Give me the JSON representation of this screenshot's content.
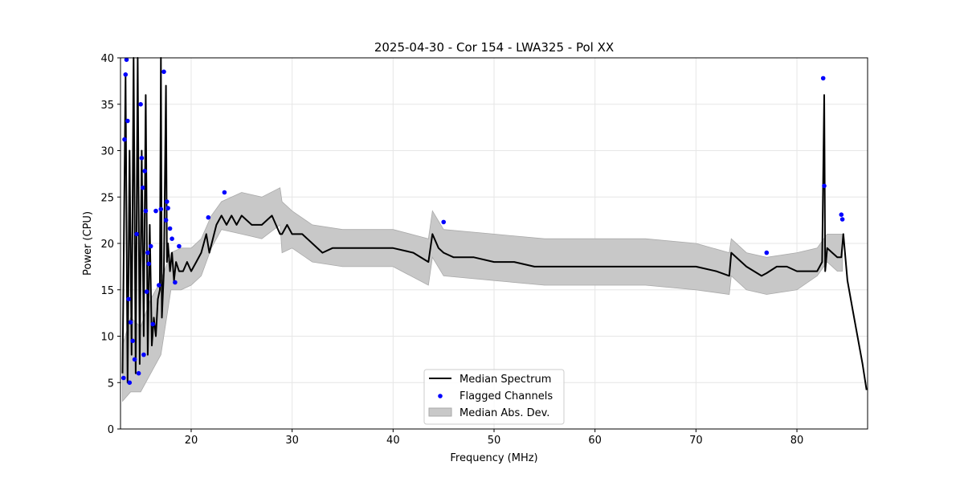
{
  "chart_data": {
    "type": "line",
    "title": "2025-04-30 - Cor 154 - LWA325 - Pol XX",
    "xlabel": "Frequency (MHz)",
    "ylabel": "Power (CPU)",
    "xlim": [
      13,
      87
    ],
    "ylim": [
      0,
      40
    ],
    "xticks": [
      20,
      30,
      40,
      50,
      60,
      70,
      80
    ],
    "yticks": [
      0,
      5,
      10,
      15,
      20,
      25,
      30,
      35,
      40
    ],
    "grid": true,
    "legend": {
      "position": "bottom-center",
      "entries": [
        "Median Spectrum",
        "Flagged Channels",
        "Median Abs. Dev."
      ]
    },
    "series": [
      {
        "name": "Median Spectrum",
        "color": "#000000",
        "x": [
          13.2,
          13.5,
          13.7,
          13.9,
          14.1,
          14.3,
          14.5,
          14.7,
          14.9,
          15.1,
          15.3,
          15.5,
          15.7,
          15.9,
          16.1,
          16.3,
          16.5,
          16.7,
          16.9,
          17.0,
          17.1,
          17.3,
          17.5,
          17.6,
          17.7,
          17.9,
          18.1,
          18.3,
          18.5,
          18.8,
          19.2,
          19.6,
          20.0,
          20.5,
          21.0,
          21.5,
          21.8,
          22.5,
          23.0,
          23.5,
          24.0,
          24.5,
          25.0,
          26.0,
          27.0,
          28.0,
          28.8,
          29.0,
          29.5,
          30.0,
          31.0,
          32.0,
          33.0,
          34.0,
          36.0,
          38.0,
          40.0,
          42.0,
          43.5,
          43.9,
          44.5,
          45.0,
          46.0,
          48.0,
          50.0,
          52.0,
          54.0,
          56.0,
          58.0,
          60.0,
          62.0,
          64.0,
          66.0,
          68.0,
          70.0,
          72.0,
          73.3,
          73.5,
          75.0,
          76.5,
          77.0,
          78.0,
          79.0,
          80.0,
          81.0,
          82.0,
          82.5,
          82.7,
          82.8,
          83.0,
          83.5,
          84.0,
          84.4,
          84.6,
          85.0,
          85.5,
          86.0,
          86.5,
          86.9
        ],
        "y": [
          6,
          38,
          5,
          30,
          8,
          40,
          6,
          40,
          7,
          30,
          10,
          36,
          8,
          22,
          9,
          12,
          10,
          14,
          15,
          40,
          12,
          17,
          37,
          18,
          20,
          17,
          19,
          16,
          18,
          17,
          17,
          18,
          17,
          18,
          19,
          21,
          19,
          22,
          23,
          22,
          23,
          22,
          23,
          22,
          22,
          23,
          21,
          21,
          22,
          21,
          21,
          20,
          19,
          19.5,
          19.5,
          19.5,
          19.5,
          19,
          18,
          21,
          19.5,
          19,
          18.5,
          18.5,
          18,
          18,
          17.5,
          17.5,
          17.5,
          17.5,
          17.5,
          17.5,
          17.5,
          17.5,
          17.5,
          17,
          16.5,
          19,
          17.5,
          16.5,
          16.8,
          17.5,
          17.5,
          17,
          17,
          17,
          18,
          36,
          17,
          19.5,
          19,
          18.5,
          18.5,
          21,
          16,
          13,
          10,
          7,
          4.2
        ]
      },
      {
        "name": "Flagged Channels",
        "color": "#0000ff",
        "x": [
          13.3,
          13.4,
          13.5,
          13.6,
          13.7,
          13.8,
          13.9,
          14.0,
          14.2,
          14.4,
          14.6,
          14.8,
          15.0,
          15.1,
          15.2,
          15.3,
          15.4,
          15.5,
          15.6,
          15.7,
          15.8,
          16.0,
          16.2,
          16.5,
          16.8,
          17.0,
          17.3,
          17.5,
          17.6,
          17.7,
          17.9,
          18.1,
          18.4,
          18.8,
          21.7,
          23.3,
          45.0,
          77.0,
          82.6,
          82.7,
          84.4,
          84.5
        ],
        "y": [
          5.5,
          31.2,
          38.2,
          39.8,
          33.2,
          14,
          5,
          11.5,
          9.5,
          7.5,
          21,
          6,
          35,
          29.2,
          26,
          8,
          27.8,
          23.5,
          14.8,
          19,
          17.8,
          19.7,
          11.3,
          23.5,
          15.5,
          23.7,
          38.5,
          22.5,
          24.5,
          23.8,
          21.6,
          20.5,
          15.8,
          19.7,
          22.8,
          25.5,
          22.3,
          19,
          37.8,
          26.2,
          23.1,
          22.6
        ]
      }
    ],
    "mad_band": {
      "name": "Median Abs. Dev.",
      "color": "#c8c8c8",
      "x": [
        13.2,
        14.0,
        15.0,
        16.0,
        17.0,
        18.0,
        19.0,
        20.0,
        21.0,
        22.0,
        23.0,
        25.0,
        27.0,
        28.8,
        29.0,
        30.0,
        32.0,
        35.0,
        40.0,
        43.5,
        43.9,
        45.0,
        50.0,
        55.0,
        60.0,
        65.0,
        70.0,
        73.3,
        73.5,
        75.0,
        77.0,
        80.0,
        82.0,
        83.0,
        84.0,
        84.5
      ],
      "upper": [
        9,
        12,
        11,
        14,
        16,
        19,
        19.5,
        19.5,
        20.5,
        23,
        24.5,
        25.5,
        25,
        26,
        24.5,
        23.5,
        22,
        21.5,
        21.5,
        20.5,
        23.5,
        21.5,
        21,
        20.5,
        20.5,
        20.5,
        20,
        19,
        20.5,
        19,
        18.5,
        19,
        19.5,
        21,
        21,
        21
      ],
      "lower": [
        3,
        4,
        4,
        6,
        8,
        15,
        15,
        15.5,
        16.5,
        19.5,
        21.5,
        21,
        20.5,
        22,
        19,
        19.5,
        18,
        17.5,
        17.5,
        15.5,
        18.5,
        16.5,
        16,
        15.5,
        15.5,
        15.5,
        15,
        14.5,
        16.5,
        15,
        14.5,
        15,
        16.5,
        18,
        17,
        17
      ]
    }
  }
}
